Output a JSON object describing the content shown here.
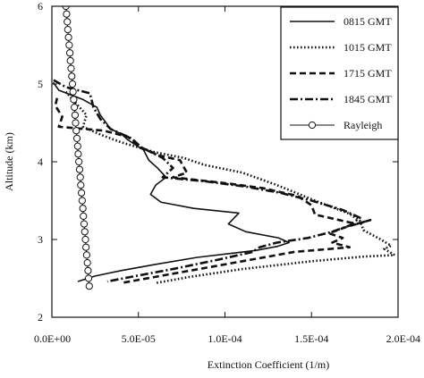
{
  "chart_data": {
    "type": "line",
    "title": "",
    "xlabel": "Extinction Coefficient     (1/m)",
    "ylabel": "Altitude (km)",
    "xlim": [
      0,
      0.0002
    ],
    "ylim": [
      2,
      6
    ],
    "x_ticks": [
      0,
      5e-05,
      0.0001,
      0.00015,
      0.0002
    ],
    "x_tick_labels": [
      "0.0E+00",
      "5.0E-05",
      "1.0E-04",
      "1.5E-04",
      "2.0E-04"
    ],
    "y_ticks": [
      2,
      3,
      4,
      5,
      6
    ],
    "y_tick_labels": [
      "2",
      "3",
      "4",
      "5",
      "6"
    ],
    "grid": false,
    "legend_position": "top-right",
    "series": [
      {
        "name": "0815 GMT",
        "dash": "solid",
        "color": "#111111",
        "points": [
          [
            8e-07,
            5.02
          ],
          [
            4e-06,
            4.92
          ],
          [
            1.8e-05,
            4.8
          ],
          [
            2.6e-05,
            4.7
          ],
          [
            2.8e-05,
            4.6
          ],
          [
            3.4e-05,
            4.42
          ],
          [
            4e-05,
            4.36
          ],
          [
            4.4e-05,
            4.28
          ],
          [
            5.3e-05,
            4.15
          ],
          [
            5.6e-05,
            4.02
          ],
          [
            6.1e-05,
            3.92
          ],
          [
            6.6e-05,
            3.8
          ],
          [
            6e-05,
            3.7
          ],
          [
            5.7e-05,
            3.58
          ],
          [
            6.3e-05,
            3.48
          ],
          [
            8.2e-05,
            3.4
          ],
          [
            0.000108,
            3.34
          ],
          [
            0.000102,
            3.2
          ],
          [
            0.000112,
            3.1
          ],
          [
            0.000131,
            3.02
          ],
          [
            0.000137,
            2.96
          ],
          [
            0.00013,
            2.91
          ],
          [
            0.000118,
            2.86
          ],
          [
            8.4e-05,
            2.77
          ],
          [
            6e-05,
            2.68
          ],
          [
            4e-05,
            2.6
          ],
          [
            2.5e-05,
            2.53
          ],
          [
            1.5e-05,
            2.46
          ]
        ]
      },
      {
        "name": "1015 GMT",
        "dash": "dotted",
        "color": "#111111",
        "points": [
          [
            8e-06,
            4.9
          ],
          [
            1.4e-05,
            4.75
          ],
          [
            2e-05,
            4.6
          ],
          [
            1.8e-05,
            4.45
          ],
          [
            2.8e-05,
            4.35
          ],
          [
            4e-05,
            4.25
          ],
          [
            6e-05,
            4.12
          ],
          [
            7.6e-05,
            4.05
          ],
          [
            8.8e-05,
            3.96
          ],
          [
            0.00011,
            3.86
          ],
          [
            0.00013,
            3.7
          ],
          [
            0.000152,
            3.5
          ],
          [
            0.000172,
            3.33
          ],
          [
            0.000178,
            3.24
          ],
          [
            0.00018,
            3.12
          ],
          [
            0.00019,
            3.0
          ],
          [
            0.000196,
            2.92
          ],
          [
            0.000192,
            2.88
          ],
          [
            0.000198,
            2.8
          ],
          [
            0.00018,
            2.78
          ],
          [
            0.00015,
            2.72
          ],
          [
            0.00011,
            2.62
          ],
          [
            8e-05,
            2.52
          ],
          [
            6e-05,
            2.44
          ]
        ]
      },
      {
        "name": "1715 GMT",
        "dash": "dashed",
        "color": "#111111",
        "points": [
          [
            3e-06,
            4.82
          ],
          [
            2e-06,
            4.72
          ],
          [
            6e-06,
            4.58
          ],
          [
            4e-06,
            4.45
          ],
          [
            3e-05,
            4.4
          ],
          [
            4.4e-05,
            4.32
          ],
          [
            5e-05,
            4.2
          ],
          [
            6.2e-05,
            4.08
          ],
          [
            7.4e-05,
            4.02
          ],
          [
            7.8e-05,
            3.86
          ],
          [
            7e-05,
            3.8
          ],
          [
            0.000102,
            3.72
          ],
          [
            0.000122,
            3.66
          ],
          [
            0.000142,
            3.56
          ],
          [
            0.00015,
            3.44
          ],
          [
            0.000152,
            3.32
          ],
          [
            0.000168,
            3.24
          ],
          [
            0.000176,
            3.2
          ],
          [
            0.000184,
            3.25
          ],
          [
            0.00017,
            3.16
          ],
          [
            0.00016,
            3.08
          ],
          [
            0.000168,
            3.02
          ],
          [
            0.000162,
            2.96
          ],
          [
            0.000172,
            2.9
          ],
          [
            0.00014,
            2.84
          ],
          [
            0.00012,
            2.76
          ],
          [
            9e-05,
            2.64
          ],
          [
            6e-05,
            2.52
          ],
          [
            4e-05,
            2.44
          ]
        ]
      },
      {
        "name": "1845 GMT",
        "dash": "dashdot",
        "color": "#111111",
        "points": [
          [
            1e-06,
            5.05
          ],
          [
            8e-06,
            4.96
          ],
          [
            2.2e-05,
            4.88
          ],
          [
            2.4e-05,
            4.7
          ],
          [
            2.8e-05,
            4.55
          ],
          [
            3.4e-05,
            4.42
          ],
          [
            4.6e-05,
            4.3
          ],
          [
            5.2e-05,
            4.18
          ],
          [
            6.4e-05,
            4.05
          ],
          [
            7e-05,
            3.92
          ],
          [
            6.4e-05,
            3.8
          ],
          [
            8.8e-05,
            3.75
          ],
          [
            0.000112,
            3.68
          ],
          [
            0.000132,
            3.6
          ],
          [
            0.00015,
            3.5
          ],
          [
            0.000168,
            3.38
          ],
          [
            0.000178,
            3.28
          ],
          [
            0.000172,
            3.18
          ],
          [
            0.000162,
            3.1
          ],
          [
            0.000148,
            3.02
          ],
          [
            0.00013,
            2.96
          ],
          [
            0.00012,
            2.9
          ],
          [
            0.000116,
            2.84
          ],
          [
            9.6e-05,
            2.74
          ],
          [
            7e-05,
            2.62
          ],
          [
            4.6e-05,
            2.52
          ],
          [
            3.2e-05,
            2.46
          ]
        ]
      },
      {
        "name": "Rayleigh",
        "dash": "circles",
        "color": "#111111",
        "points": [
          [
            8.1e-06,
            6.0
          ],
          [
            8.5e-06,
            5.9
          ],
          [
            8.9e-06,
            5.8
          ],
          [
            9.2e-06,
            5.7
          ],
          [
            9.6e-06,
            5.6
          ],
          [
            1e-05,
            5.5
          ],
          [
            1.04e-05,
            5.4
          ],
          [
            1.07e-05,
            5.3
          ],
          [
            1.11e-05,
            5.2
          ],
          [
            1.15e-05,
            5.1
          ],
          [
            1.19e-05,
            5.0
          ],
          [
            1.22e-05,
            4.9
          ],
          [
            1.26e-05,
            4.8
          ],
          [
            1.3e-05,
            4.7
          ],
          [
            1.34e-05,
            4.6
          ],
          [
            1.37e-05,
            4.5
          ],
          [
            1.41e-05,
            4.4
          ],
          [
            1.45e-05,
            4.3
          ],
          [
            1.49e-05,
            4.2
          ],
          [
            1.52e-05,
            4.1
          ],
          [
            1.56e-05,
            4.0
          ],
          [
            1.6e-05,
            3.9
          ],
          [
            1.64e-05,
            3.8
          ],
          [
            1.67e-05,
            3.7
          ],
          [
            1.71e-05,
            3.6
          ],
          [
            1.75e-05,
            3.5
          ],
          [
            1.79e-05,
            3.4
          ],
          [
            1.82e-05,
            3.3
          ],
          [
            1.86e-05,
            3.2
          ],
          [
            1.9e-05,
            3.1
          ],
          [
            1.94e-05,
            3.0
          ],
          [
            1.97e-05,
            2.9
          ],
          [
            2.01e-05,
            2.8
          ],
          [
            2.05e-05,
            2.7
          ],
          [
            2.09e-05,
            2.6
          ],
          [
            2.12e-05,
            2.5
          ],
          [
            2.16e-05,
            2.4
          ]
        ]
      }
    ]
  }
}
